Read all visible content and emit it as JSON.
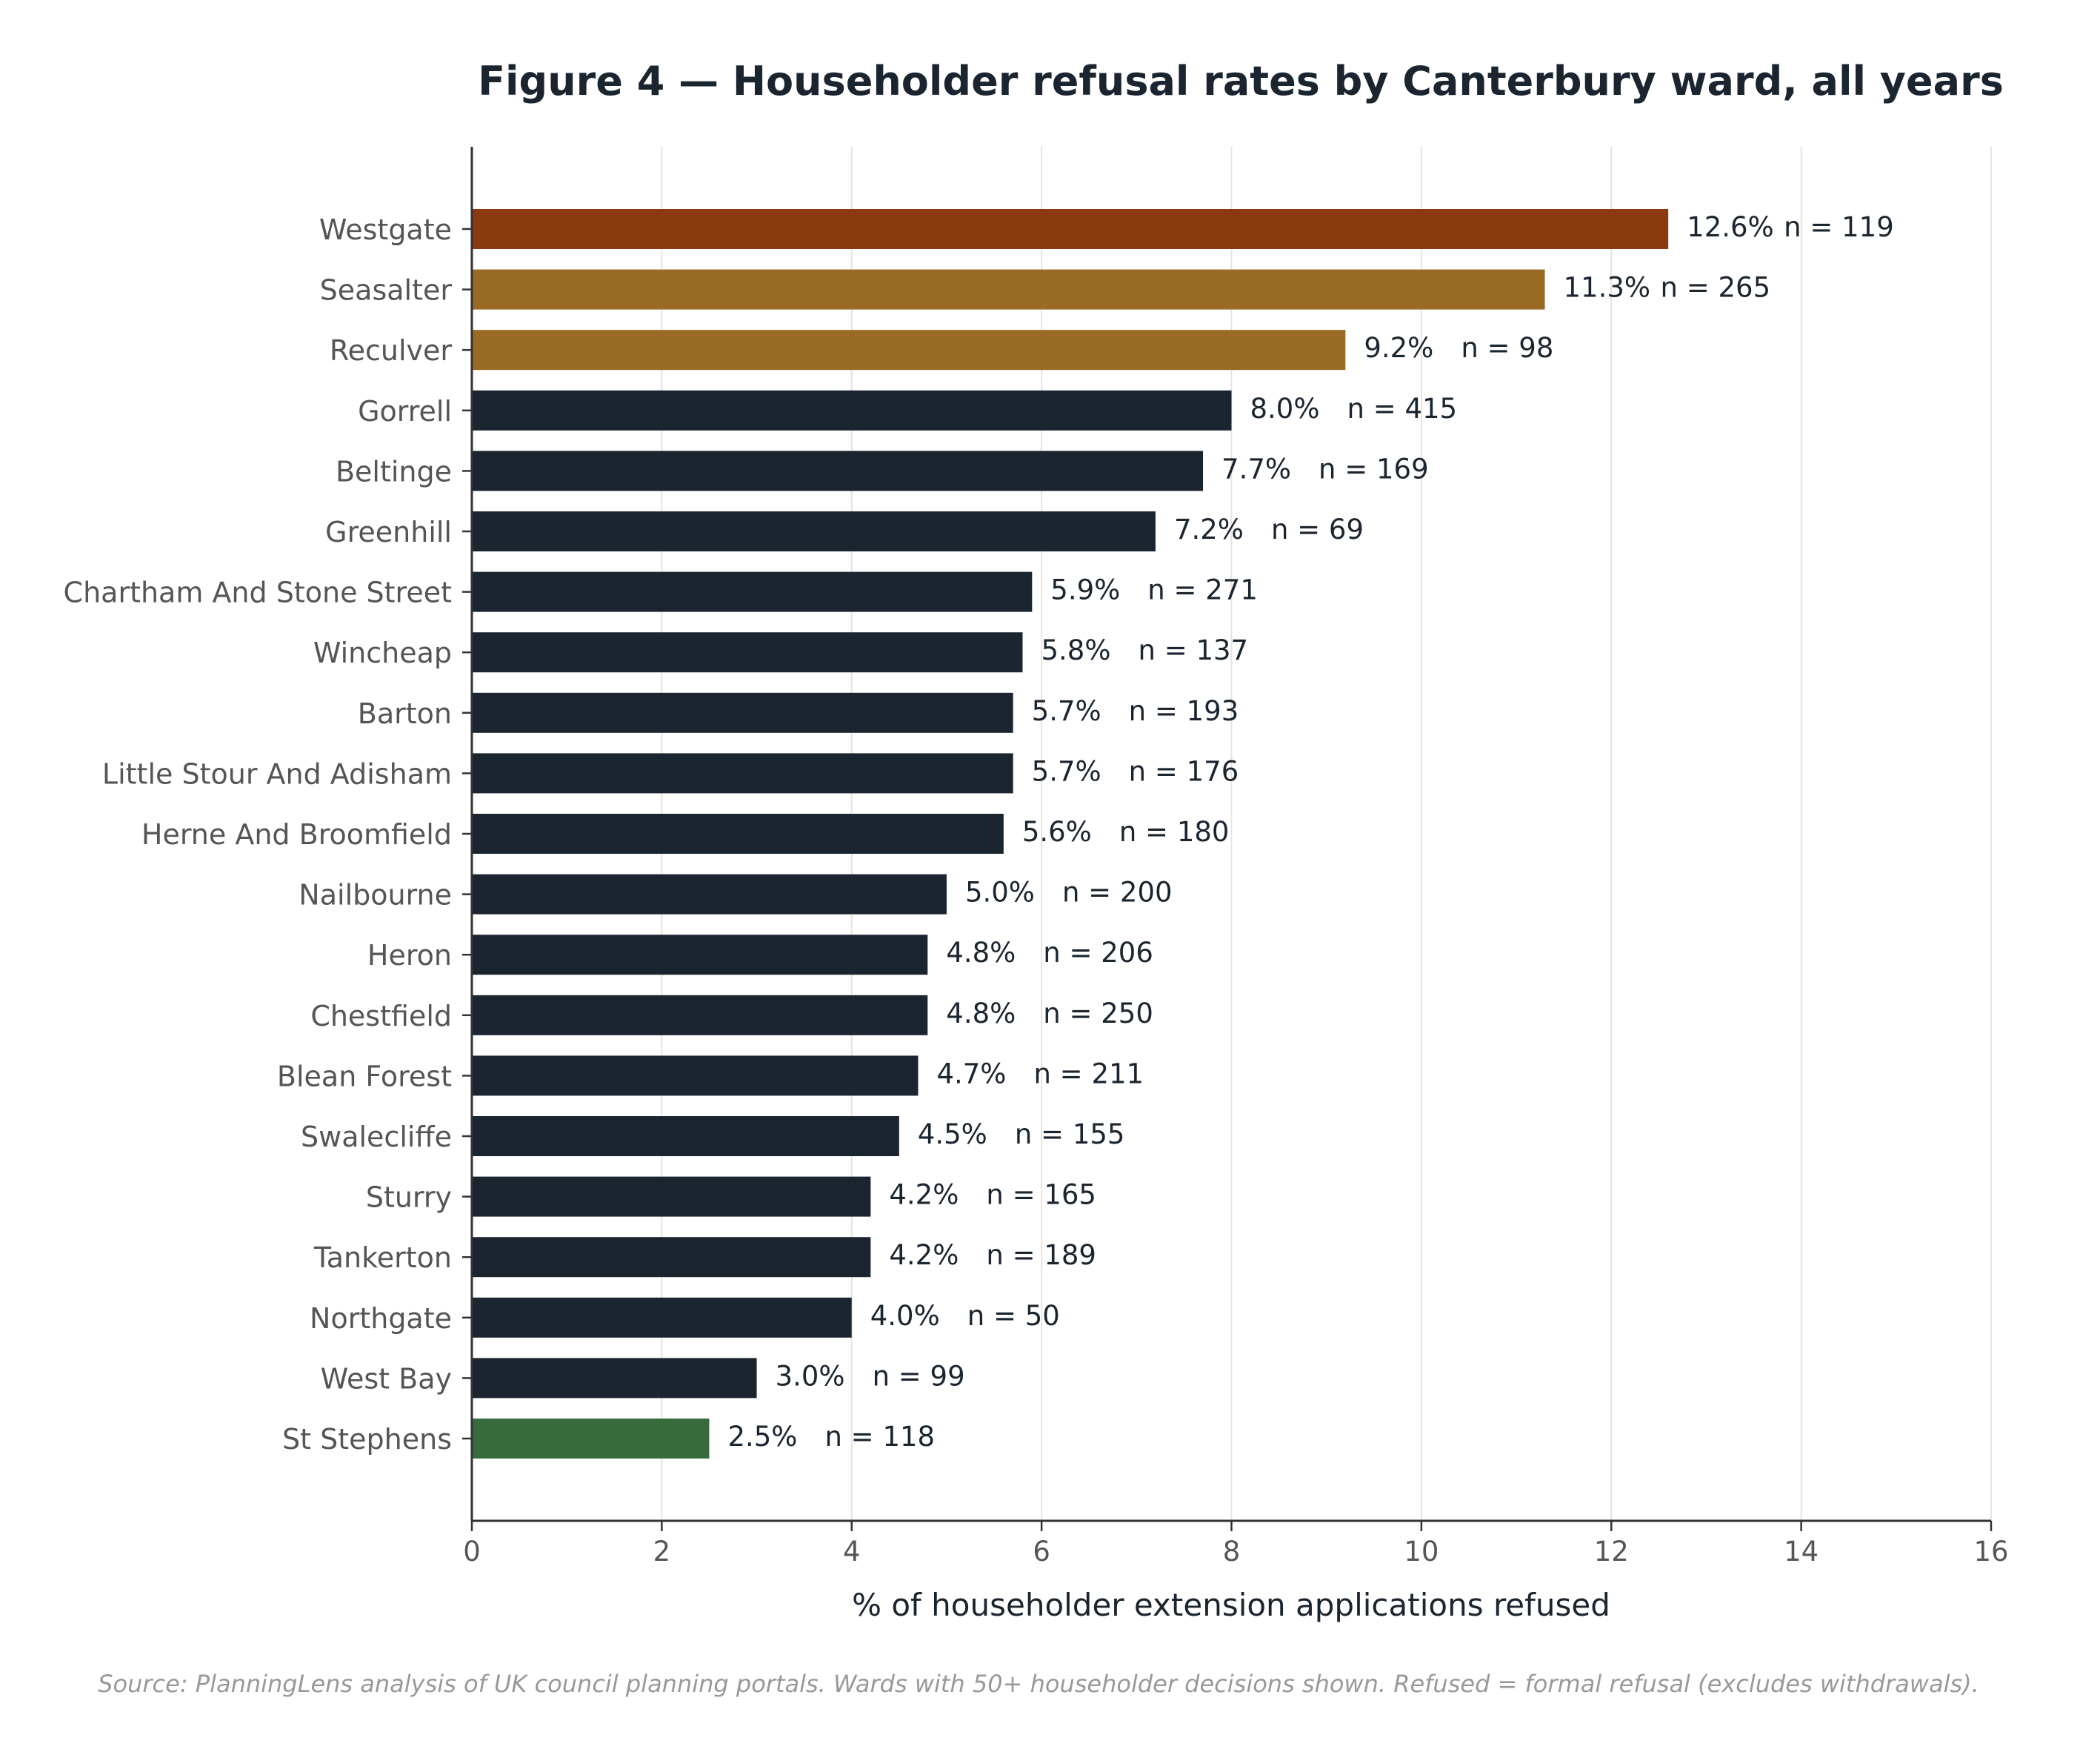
{
  "chart_data": {
    "type": "bar",
    "orientation": "horizontal",
    "title": "Figure 4 — Householder refusal rates by Canterbury ward, all years",
    "xlabel": "% of householder extension applications refused",
    "source": "Source: PlanningLens analysis of UK council planning portals. Wards with 50+ householder decisions shown. Refused = formal refusal (excludes withdrawals).",
    "xlim": [
      0,
      16
    ],
    "xticks": [
      "0",
      "2",
      "4",
      "6",
      "8",
      "10",
      "12",
      "14",
      "16"
    ],
    "grid": "vertical",
    "colors": {
      "highest": "#8b3a10",
      "high": "#9a6b25",
      "normal": "#1b2530",
      "lowest": "#386b3c"
    },
    "bars": [
      {
        "ward": "Westgate",
        "value": 12.6,
        "value_label": "12.6%",
        "n_label": "n = 119",
        "group": "highest"
      },
      {
        "ward": "Seasalter",
        "value": 11.3,
        "value_label": "11.3%",
        "n_label": "n = 265",
        "group": "high"
      },
      {
        "ward": "Reculver",
        "value": 9.2,
        "value_label": "9.2%",
        "n_label": "n = 98",
        "group": "high"
      },
      {
        "ward": "Gorrell",
        "value": 8.0,
        "value_label": "8.0%",
        "n_label": "n = 415",
        "group": "normal"
      },
      {
        "ward": "Beltinge",
        "value": 7.7,
        "value_label": "7.7%",
        "n_label": "n = 169",
        "group": "normal"
      },
      {
        "ward": "Greenhill",
        "value": 7.2,
        "value_label": "7.2%",
        "n_label": "n = 69",
        "group": "normal"
      },
      {
        "ward": "Chartham And Stone Street",
        "value": 5.9,
        "value_label": "5.9%",
        "n_label": "n = 271",
        "group": "normal"
      },
      {
        "ward": "Wincheap",
        "value": 5.8,
        "value_label": "5.8%",
        "n_label": "n = 137",
        "group": "normal"
      },
      {
        "ward": "Barton",
        "value": 5.7,
        "value_label": "5.7%",
        "n_label": "n = 193",
        "group": "normal"
      },
      {
        "ward": "Little Stour And Adisham",
        "value": 5.7,
        "value_label": "5.7%",
        "n_label": "n = 176",
        "group": "normal"
      },
      {
        "ward": "Herne And Broomfield",
        "value": 5.6,
        "value_label": "5.6%",
        "n_label": "n = 180",
        "group": "normal"
      },
      {
        "ward": "Nailbourne",
        "value": 5.0,
        "value_label": "5.0%",
        "n_label": "n = 200",
        "group": "normal"
      },
      {
        "ward": "Heron",
        "value": 4.8,
        "value_label": "4.8%",
        "n_label": "n = 206",
        "group": "normal"
      },
      {
        "ward": "Chestfield",
        "value": 4.8,
        "value_label": "4.8%",
        "n_label": "n = 250",
        "group": "normal"
      },
      {
        "ward": "Blean Forest",
        "value": 4.7,
        "value_label": "4.7%",
        "n_label": "n = 211",
        "group": "normal"
      },
      {
        "ward": "Swalecliffe",
        "value": 4.5,
        "value_label": "4.5%",
        "n_label": "n = 155",
        "group": "normal"
      },
      {
        "ward": "Sturry",
        "value": 4.2,
        "value_label": "4.2%",
        "n_label": "n = 165",
        "group": "normal"
      },
      {
        "ward": "Tankerton",
        "value": 4.2,
        "value_label": "4.2%",
        "n_label": "n = 189",
        "group": "normal"
      },
      {
        "ward": "Northgate",
        "value": 4.0,
        "value_label": "4.0%",
        "n_label": "n = 50",
        "group": "normal"
      },
      {
        "ward": "West Bay",
        "value": 3.0,
        "value_label": "3.0%",
        "n_label": "n = 99",
        "group": "normal"
      },
      {
        "ward": "St Stephens",
        "value": 2.5,
        "value_label": "2.5%",
        "n_label": "n = 118",
        "group": "lowest"
      }
    ]
  }
}
